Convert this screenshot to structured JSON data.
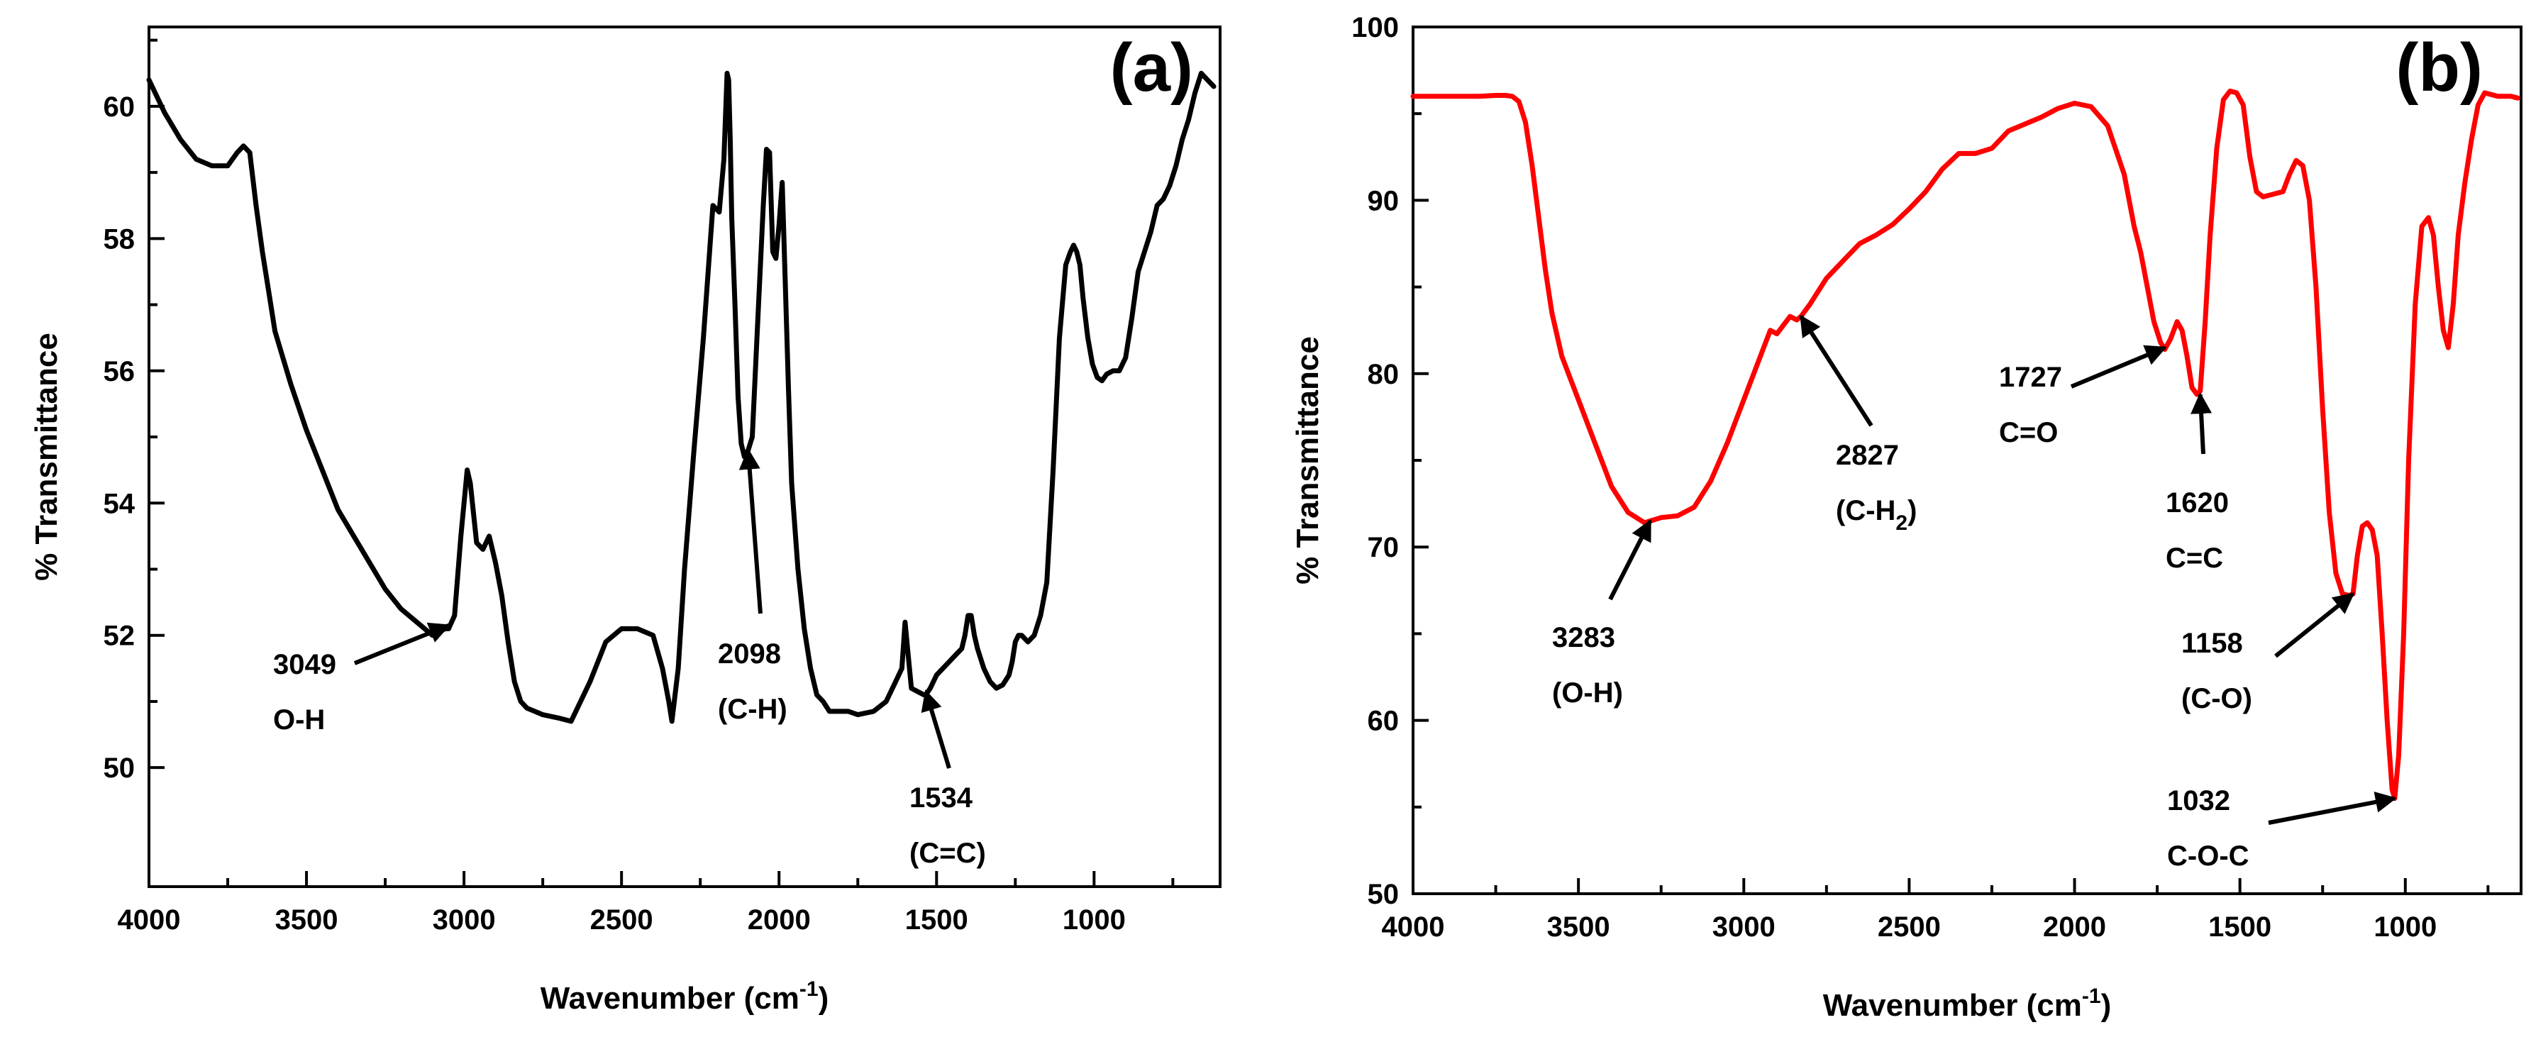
{
  "chart_data": [
    {
      "type": "line",
      "panel_label": "(a)",
      "xlabel": "Wavenumber (cm",
      "xlabel_sup": "-1",
      "xlabel_end": ")",
      "ylabel": "% Transmittance",
      "xlim": [
        4000,
        600
      ],
      "ylim": [
        48.2,
        61.2
      ],
      "xticks": [
        "4000",
        "3500",
        "3000",
        "2500",
        "2000",
        "1500",
        "1000"
      ],
      "yticks": [
        "50",
        "52",
        "54",
        "56",
        "58",
        "60"
      ],
      "line_color": "#000000",
      "series": [
        {
          "name": "spectrum-a",
          "x": [
            4000,
            3950,
            3900,
            3850,
            3800,
            3750,
            3720,
            3700,
            3680,
            3660,
            3640,
            3620,
            3600,
            3550,
            3500,
            3450,
            3400,
            3350,
            3300,
            3250,
            3200,
            3150,
            3100,
            3060,
            3049,
            3030,
            3010,
            2990,
            2980,
            2960,
            2940,
            2920,
            2900,
            2880,
            2860,
            2840,
            2820,
            2800,
            2750,
            2700,
            2660,
            2600,
            2550,
            2500,
            2450,
            2400,
            2370,
            2350,
            2340,
            2320,
            2300,
            2270,
            2240,
            2210,
            2190,
            2175,
            2165,
            2160,
            2155,
            2150,
            2140,
            2130,
            2120,
            2110,
            2098,
            2085,
            2070,
            2050,
            2040,
            2030,
            2020,
            2010,
            2000,
            1990,
            1980,
            1970,
            1960,
            1940,
            1920,
            1900,
            1880,
            1860,
            1840,
            1820,
            1800,
            1780,
            1750,
            1700,
            1660,
            1630,
            1610,
            1600,
            1590,
            1580,
            1560,
            1540,
            1534,
            1520,
            1500,
            1480,
            1460,
            1440,
            1420,
            1410,
            1400,
            1390,
            1380,
            1370,
            1350,
            1330,
            1310,
            1290,
            1270,
            1260,
            1250,
            1240,
            1230,
            1210,
            1190,
            1170,
            1150,
            1130,
            1110,
            1090,
            1075,
            1065,
            1055,
            1045,
            1035,
            1020,
            1005,
            990,
            975,
            960,
            940,
            920,
            900,
            880,
            860,
            840,
            820,
            800,
            780,
            760,
            740,
            720,
            700,
            680,
            660,
            640,
            620
          ],
          "y": [
            60.4,
            59.9,
            59.5,
            59.2,
            59.1,
            59.1,
            59.3,
            59.4,
            59.3,
            58.5,
            57.8,
            57.2,
            56.6,
            55.8,
            55.1,
            54.5,
            53.9,
            53.5,
            53.1,
            52.7,
            52.4,
            52.2,
            52.0,
            52.1,
            52.1,
            52.3,
            53.5,
            54.5,
            54.3,
            53.4,
            53.3,
            53.5,
            53.1,
            52.6,
            51.9,
            51.3,
            51.0,
            50.9,
            50.8,
            50.75,
            50.7,
            51.3,
            51.9,
            52.1,
            52.1,
            52.0,
            51.5,
            51.0,
            50.7,
            51.5,
            53.0,
            54.8,
            56.5,
            58.5,
            58.4,
            59.2,
            60.5,
            60.4,
            59.5,
            58.3,
            57.0,
            55.6,
            54.9,
            54.7,
            54.8,
            55.0,
            56.5,
            58.5,
            59.35,
            59.3,
            57.8,
            57.7,
            58.2,
            58.85,
            57.3,
            55.7,
            54.3,
            53.0,
            52.1,
            51.5,
            51.1,
            51.0,
            50.85,
            50.85,
            50.85,
            50.85,
            50.8,
            50.85,
            51.0,
            51.3,
            51.5,
            52.2,
            51.7,
            51.2,
            51.15,
            51.1,
            51.1,
            51.2,
            51.4,
            51.5,
            51.6,
            51.7,
            51.8,
            52.0,
            52.3,
            52.3,
            52.0,
            51.8,
            51.5,
            51.3,
            51.2,
            51.25,
            51.4,
            51.6,
            51.9,
            52.0,
            52.0,
            51.9,
            52.0,
            52.3,
            52.8,
            54.5,
            56.5,
            57.6,
            57.8,
            57.9,
            57.8,
            57.6,
            57.1,
            56.5,
            56.1,
            55.9,
            55.85,
            55.95,
            56.0,
            56.0,
            56.2,
            56.8,
            57.5,
            57.8,
            58.1,
            58.5,
            58.6,
            58.8,
            59.1,
            59.5,
            59.8,
            60.2,
            60.5,
            60.4,
            60.3
          ],
          "color": "#000000"
        }
      ],
      "annotations": [
        {
          "line1": "3049",
          "line2": "O-H",
          "x": 3049,
          "y": 52.15
        },
        {
          "line1": "2098",
          "line2": "(C-H)",
          "x": 2098,
          "y": 54.8
        },
        {
          "line1": "1534",
          "line2": "(C=C)",
          "x": 1534,
          "y": 51.15
        }
      ]
    },
    {
      "type": "line",
      "panel_label": "(b)",
      "xlabel": "Wavenumber (cm",
      "xlabel_sup": "-1",
      "xlabel_end": ")",
      "ylabel": "% Transmittance",
      "xlim": [
        4000,
        650
      ],
      "ylim": [
        50,
        100
      ],
      "xticks": [
        "4000",
        "3500",
        "3000",
        "2500",
        "2000",
        "1500",
        "1000"
      ],
      "yticks": [
        "50",
        "60",
        "70",
        "80",
        "90",
        "100"
      ],
      "line_color": "#ff0000",
      "series": [
        {
          "name": "spectrum-b",
          "x": [
            4000,
            3900,
            3800,
            3750,
            3720,
            3700,
            3680,
            3660,
            3640,
            3620,
            3600,
            3580,
            3550,
            3500,
            3450,
            3400,
            3350,
            3300,
            3283,
            3250,
            3200,
            3150,
            3100,
            3050,
            3000,
            2950,
            2920,
            2900,
            2880,
            2860,
            2840,
            2827,
            2800,
            2750,
            2700,
            2650,
            2600,
            2550,
            2500,
            2450,
            2400,
            2350,
            2300,
            2250,
            2200,
            2150,
            2100,
            2050,
            2000,
            1950,
            1900,
            1850,
            1820,
            1800,
            1780,
            1760,
            1740,
            1727,
            1710,
            1690,
            1675,
            1660,
            1645,
            1630,
            1620,
            1605,
            1590,
            1570,
            1550,
            1530,
            1510,
            1490,
            1470,
            1450,
            1430,
            1410,
            1390,
            1370,
            1350,
            1330,
            1310,
            1290,
            1270,
            1250,
            1230,
            1210,
            1190,
            1170,
            1158,
            1145,
            1130,
            1115,
            1100,
            1085,
            1070,
            1055,
            1040,
            1032,
            1020,
            1005,
            990,
            970,
            950,
            930,
            915,
            900,
            885,
            870,
            855,
            840,
            820,
            800,
            780,
            760,
            740,
            720,
            700,
            680,
            660
          ],
          "y": [
            96.0,
            96.0,
            96.0,
            96.05,
            96.05,
            96.0,
            95.7,
            94.5,
            92.0,
            89.0,
            86.0,
            83.5,
            81.0,
            78.5,
            76.0,
            73.5,
            72.0,
            71.4,
            71.5,
            71.7,
            71.8,
            72.3,
            73.8,
            76.0,
            78.5,
            81.0,
            82.5,
            82.3,
            82.8,
            83.3,
            83.1,
            83.3,
            84.0,
            85.5,
            86.5,
            87.5,
            88.0,
            88.6,
            89.5,
            90.5,
            91.8,
            92.7,
            92.7,
            93.0,
            94.0,
            94.4,
            94.8,
            95.3,
            95.6,
            95.4,
            94.3,
            91.5,
            88.5,
            87.0,
            85.0,
            83.0,
            81.8,
            81.4,
            82.0,
            83.0,
            82.5,
            81.0,
            79.2,
            78.8,
            79.0,
            83.0,
            88.0,
            93.0,
            95.8,
            96.3,
            96.2,
            95.5,
            92.5,
            90.5,
            90.2,
            90.3,
            90.4,
            90.5,
            91.5,
            92.3,
            92.0,
            90.0,
            85.0,
            78.0,
            72.0,
            68.5,
            67.3,
            67.2,
            67.3,
            69.5,
            71.2,
            71.4,
            71.0,
            69.5,
            65.0,
            60.0,
            56.0,
            55.5,
            58.0,
            65.0,
            75.0,
            84.0,
            88.5,
            89.0,
            88.0,
            85.0,
            82.5,
            81.5,
            84.0,
            88.0,
            91.0,
            93.5,
            95.5,
            96.2,
            96.1,
            96.0,
            96.0,
            96.0,
            95.9
          ],
          "color": "#ff0000"
        }
      ],
      "annotations": [
        {
          "line1": "3283",
          "line2": "(O-H)",
          "x": 3283,
          "y": 71.5
        },
        {
          "line1": "2827",
          "line2": "(C-H",
          "line2_sub": "2",
          "line2_end": ")",
          "x": 2827,
          "y": 83.3
        },
        {
          "line1": "1727",
          "line2": "C=O",
          "x": 1727,
          "y": 81.5
        },
        {
          "line1": "1620",
          "line2": "C=C",
          "x": 1620,
          "y": 78.8
        },
        {
          "line1": "1158",
          "line2": "(C-O)",
          "x": 1158,
          "y": 67.3
        },
        {
          "line1": "1032",
          "line2": "C-O-C",
          "x": 1032,
          "y": 55.5
        }
      ]
    }
  ]
}
